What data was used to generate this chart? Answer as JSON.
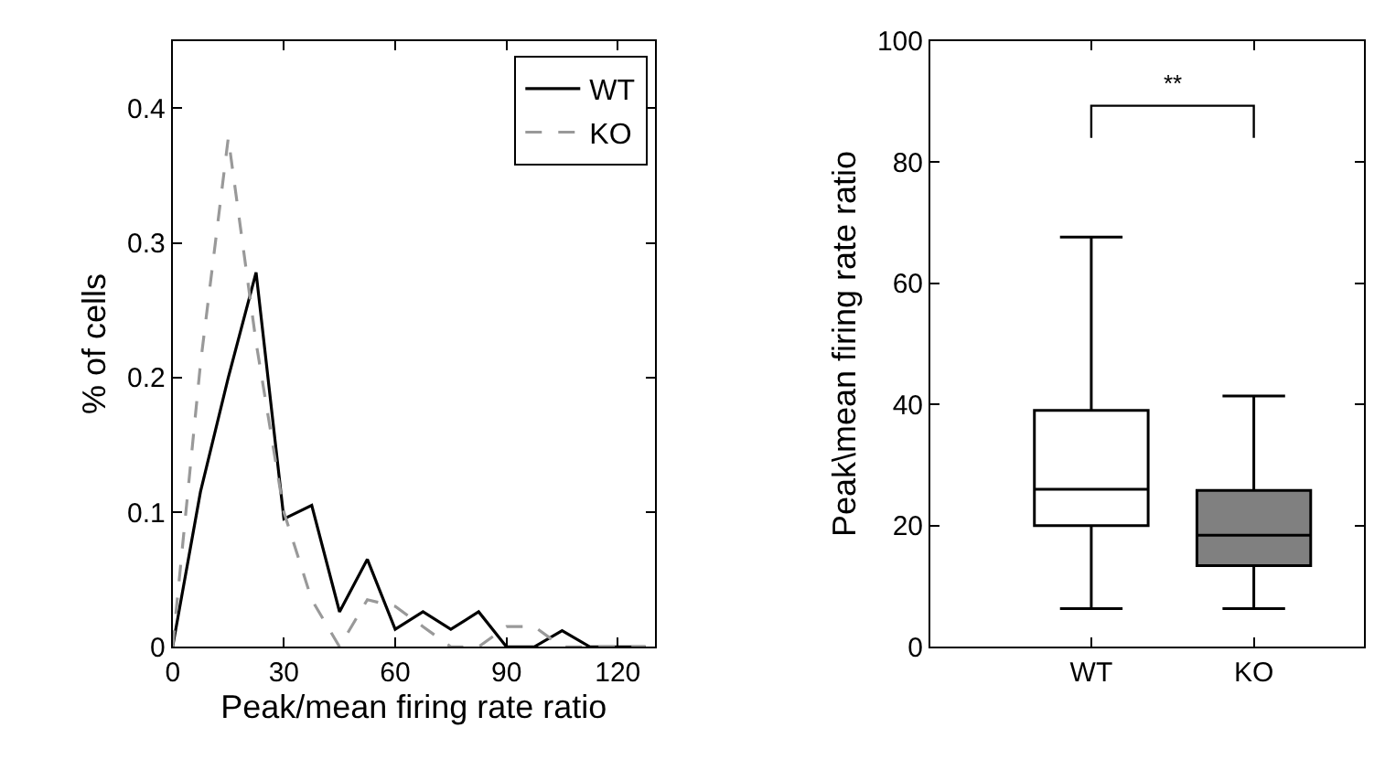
{
  "chart_data": [
    {
      "type": "line",
      "xlabel": "Peak/mean firing rate ratio",
      "ylabel": "% of cells",
      "xlim": [
        0,
        130
      ],
      "ylim": [
        0,
        0.45
      ],
      "xticks": [
        0,
        30,
        60,
        90,
        120
      ],
      "yticks": [
        0,
        0.1,
        0.2,
        0.3,
        0.4
      ],
      "legend": "top right",
      "marker": "none",
      "x": [
        0,
        7.5,
        15,
        22.5,
        30,
        37.5,
        45,
        52.5,
        60,
        67.5,
        75,
        82.5,
        90,
        97.5,
        105,
        112.5,
        120,
        127.5
      ],
      "series": [
        {
          "name": "WT",
          "color": "#000000",
          "line_style": "solid",
          "values": [
            0,
            0.115,
            0.2,
            0.278,
            0.095,
            0.105,
            0.026,
            0.065,
            0.013,
            0.026,
            0.013,
            0.026,
            0,
            0,
            0.012,
            0,
            0,
            0
          ]
        },
        {
          "name": "KO",
          "color": "#999999",
          "line_style": "dashed",
          "values": [
            0,
            0.21,
            0.378,
            0.226,
            0.1,
            0.035,
            0,
            0.035,
            0.03,
            0.015,
            0,
            0,
            0.015,
            0.015,
            0,
            0,
            0,
            0
          ]
        }
      ]
    },
    {
      "type": "box",
      "ylabel": "Peak\\mean firing rate ratio",
      "categories": [
        "WT",
        "KO"
      ],
      "ylim": [
        0,
        100
      ],
      "yticks": [
        0,
        20,
        40,
        60,
        80,
        100
      ],
      "legend": false,
      "colors": [
        "#ffffff",
        "#808080"
      ],
      "boxes": [
        {
          "low": 6.3,
          "q1": 20,
          "median": 26,
          "q3": 39,
          "high": 67.6
        },
        {
          "low": 6.3,
          "q1": 13.4,
          "median": 18.4,
          "q3": 25.8,
          "high": 41.4
        }
      ],
      "annotations": [
        "**"
      ]
    }
  ]
}
